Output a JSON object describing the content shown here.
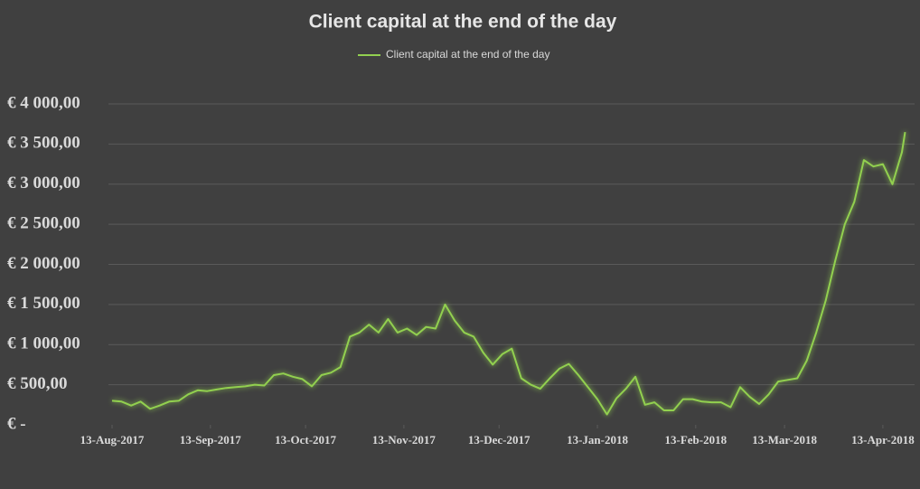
{
  "chart_data": {
    "type": "line",
    "title": "Client capital at the end of the day",
    "x": [
      "2017-08-13",
      "2017-08-16",
      "2017-08-19",
      "2017-08-22",
      "2017-08-25",
      "2017-08-28",
      "2017-08-31",
      "2017-09-03",
      "2017-09-06",
      "2017-09-09",
      "2017-09-12",
      "2017-09-15",
      "2017-09-18",
      "2017-09-21",
      "2017-09-24",
      "2017-09-27",
      "2017-09-30",
      "2017-10-03",
      "2017-10-06",
      "2017-10-09",
      "2017-10-12",
      "2017-10-15",
      "2017-10-18",
      "2017-10-21",
      "2017-10-24",
      "2017-10-27",
      "2017-10-30",
      "2017-11-02",
      "2017-11-05",
      "2017-11-08",
      "2017-11-11",
      "2017-11-14",
      "2017-11-17",
      "2017-11-20",
      "2017-11-23",
      "2017-11-26",
      "2017-11-29",
      "2017-12-02",
      "2017-12-05",
      "2017-12-08",
      "2017-12-11",
      "2017-12-14",
      "2017-12-17",
      "2017-12-20",
      "2017-12-23",
      "2017-12-26",
      "2017-12-29",
      "2018-01-01",
      "2018-01-04",
      "2018-01-07",
      "2018-01-10",
      "2018-01-13",
      "2018-01-16",
      "2018-01-19",
      "2018-01-22",
      "2018-01-25",
      "2018-01-28",
      "2018-01-31",
      "2018-02-03",
      "2018-02-06",
      "2018-02-09",
      "2018-02-12",
      "2018-02-15",
      "2018-02-18",
      "2018-02-21",
      "2018-02-24",
      "2018-02-27",
      "2018-03-02",
      "2018-03-05",
      "2018-03-08",
      "2018-03-11",
      "2018-03-14",
      "2018-03-17",
      "2018-03-20",
      "2018-03-23",
      "2018-03-26",
      "2018-03-29",
      "2018-04-01",
      "2018-04-04",
      "2018-04-07",
      "2018-04-10",
      "2018-04-13",
      "2018-04-16",
      "2018-04-19",
      "2018-04-20"
    ],
    "series": [
      {
        "name": "Client capital at the end of the day",
        "color": "#92d050",
        "values": [
          300,
          290,
          240,
          290,
          200,
          240,
          290,
          300,
          380,
          430,
          420,
          440,
          460,
          470,
          480,
          500,
          490,
          620,
          640,
          600,
          570,
          480,
          620,
          650,
          720,
          1100,
          1150,
          1250,
          1150,
          1320,
          1150,
          1200,
          1120,
          1220,
          1200,
          1500,
          1300,
          1150,
          1100,
          900,
          750,
          880,
          950,
          580,
          500,
          450,
          580,
          700,
          760,
          620,
          470,
          320,
          130,
          330,
          450,
          600,
          250,
          280,
          180,
          180,
          320,
          320,
          290,
          280,
          280,
          220,
          470,
          350,
          260,
          380,
          540,
          560,
          580,
          800,
          1150,
          1550,
          2050,
          2500,
          2780,
          3300,
          3220,
          3250,
          3000,
          3400,
          3650
        ]
      }
    ],
    "xlim": [
      "2017-08-13",
      "2018-04-21"
    ],
    "xticks": [
      {
        "value": "2017-08-13",
        "label": "13-Aug-2017"
      },
      {
        "value": "2017-09-13",
        "label": "13-Sep-2017"
      },
      {
        "value": "2017-10-13",
        "label": "13-Oct-2017"
      },
      {
        "value": "2017-11-13",
        "label": "13-Nov-2017"
      },
      {
        "value": "2017-12-13",
        "label": "13-Dec-2017"
      },
      {
        "value": "2018-01-13",
        "label": "13-Jan-2018"
      },
      {
        "value": "2018-02-13",
        "label": "13-Feb-2018"
      },
      {
        "value": "2018-03-13",
        "label": "13-Mar-2018"
      },
      {
        "value": "2018-04-13",
        "label": "13-Apr-2018"
      }
    ],
    "ylim": [
      0,
      4000
    ],
    "yticks": [
      {
        "value": 0,
        "label": "€ -"
      },
      {
        "value": 500,
        "label": "€ 500,00"
      },
      {
        "value": 1000,
        "label": "€ 1 000,00"
      },
      {
        "value": 1500,
        "label": "€ 1 500,00"
      },
      {
        "value": 2000,
        "label": "€ 2 000,00"
      },
      {
        "value": 2500,
        "label": "€ 2 500,00"
      },
      {
        "value": 3000,
        "label": "€ 3 000,00"
      },
      {
        "value": 3500,
        "label": "€ 3 500,00"
      },
      {
        "value": 4000,
        "label": "€ 4 000,00"
      }
    ],
    "grid": true,
    "legend": "top"
  }
}
